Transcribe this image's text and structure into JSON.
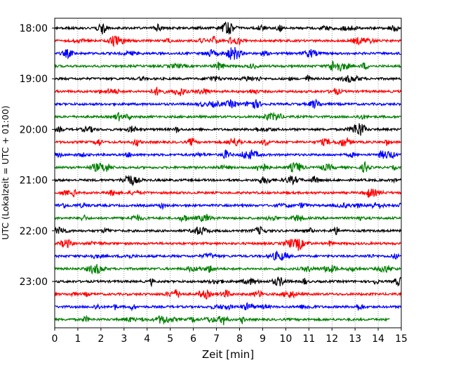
{
  "chart_data": {
    "type": "line",
    "title": "",
    "xlabel": "Zeit  [min]",
    "ylabel": "UTC (Lokalzeit = UTC + 01:00)",
    "xlim": [
      0,
      15
    ],
    "x_ticks": [
      "0",
      "1",
      "2",
      "3",
      "4",
      "5",
      "6",
      "7",
      "8",
      "9",
      "10",
      "11",
      "12",
      "13",
      "14",
      "15"
    ],
    "y_tick_labels": [
      "18:00",
      "19:00",
      "20:00",
      "21:00",
      "22:00",
      "23:00"
    ],
    "grid": "vertical dotted at each minute",
    "trace_colors": [
      "#000000",
      "#ff0000",
      "#0000ff",
      "#008000"
    ],
    "trace_interval_minutes": 15,
    "traces": [
      {
        "start": "18:00",
        "end_minute": 15
      },
      {
        "start": "18:15",
        "end_minute": 15
      },
      {
        "start": "18:30",
        "end_minute": 15
      },
      {
        "start": "18:45",
        "end_minute": 15
      },
      {
        "start": "19:00",
        "end_minute": 15
      },
      {
        "start": "19:15",
        "end_minute": 15
      },
      {
        "start": "19:30",
        "end_minute": 15
      },
      {
        "start": "19:45",
        "end_minute": 15
      },
      {
        "start": "20:00",
        "end_minute": 15
      },
      {
        "start": "20:15",
        "end_minute": 15
      },
      {
        "start": "20:30",
        "end_minute": 15
      },
      {
        "start": "20:45",
        "end_minute": 15
      },
      {
        "start": "21:00",
        "end_minute": 15
      },
      {
        "start": "21:15",
        "end_minute": 15
      },
      {
        "start": "21:30",
        "end_minute": 15
      },
      {
        "start": "21:45",
        "end_minute": 15
      },
      {
        "start": "22:00",
        "end_minute": 15
      },
      {
        "start": "22:15",
        "end_minute": 15
      },
      {
        "start": "22:30",
        "end_minute": 15
      },
      {
        "start": "22:45",
        "end_minute": 15
      },
      {
        "start": "23:00",
        "end_minute": 15
      },
      {
        "start": "23:15",
        "end_minute": 15
      },
      {
        "start": "23:30",
        "end_minute": 15
      },
      {
        "start": "23:45",
        "end_minute": 14.5
      }
    ]
  }
}
